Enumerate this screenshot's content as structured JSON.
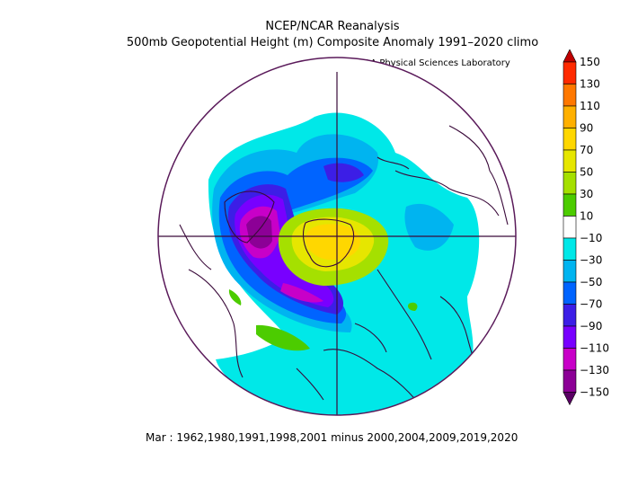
{
  "header": {
    "title": "NCEP/NCAR Reanalysis",
    "subtitle": "500mb Geopotential Height (m) Composite Anomaly 1991–2020 climo",
    "credit": "NOAA Physical Sciences Laboratory"
  },
  "footer": {
    "caption": "Mar : 1962,1980,1991,1998,2001 minus 2000,2004,2009,2019,2020"
  },
  "colorbar": {
    "labels": [
      "150",
      "130",
      "110",
      "90",
      "70",
      "50",
      "30",
      "10",
      "−10",
      "−30",
      "−50",
      "−70",
      "−90",
      "−110",
      "−130",
      "−150"
    ],
    "colors": [
      "#c00000",
      "#ff2a00",
      "#ff7800",
      "#ffb000",
      "#ffd700",
      "#e6e600",
      "#a5e000",
      "#4ccc00",
      "#ffffff",
      "#00e8e8",
      "#00b4f0",
      "#0064ff",
      "#3c1ee6",
      "#7800ff",
      "#c800c8",
      "#8c0096",
      "#5a0064"
    ]
  },
  "map_colors": {
    "border": "#5a1a5a",
    "coast": "#3a0a3a"
  }
}
